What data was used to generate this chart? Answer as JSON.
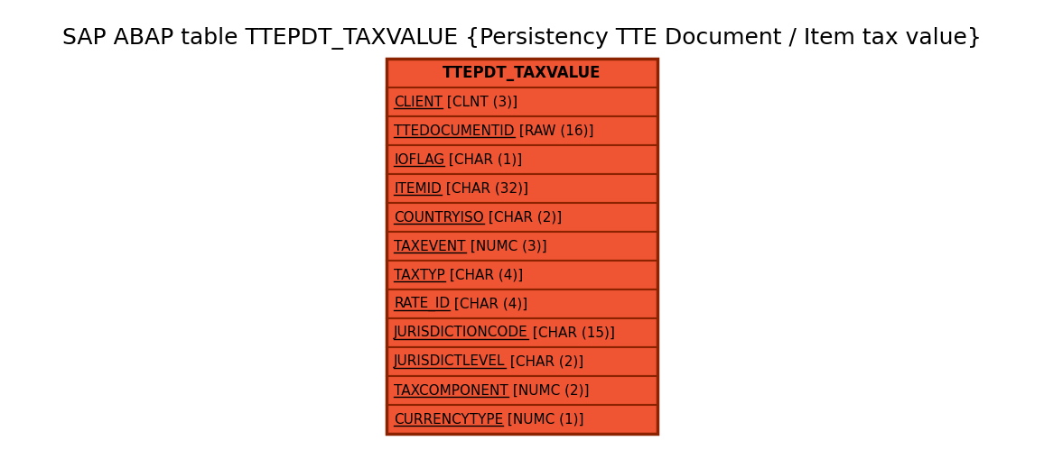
{
  "title": "SAP ABAP table TTEPDT_TAXVALUE {Persistency TTE Document / Item tax value}",
  "title_fontsize": 18,
  "table_name": "TTEPDT_TAXVALUE",
  "header_bg": "#F05533",
  "row_bg": "#F05533",
  "border_color": "#8B2200",
  "text_color": "#000000",
  "header_text_color": "#000000",
  "fields": [
    {
      "name": "CLIENT",
      "type": " [CLNT (3)]"
    },
    {
      "name": "TTEDOCUMENTID",
      "type": " [RAW (16)]"
    },
    {
      "name": "IOFLAG",
      "type": " [CHAR (1)]"
    },
    {
      "name": "ITEMID",
      "type": " [CHAR (32)]"
    },
    {
      "name": "COUNTRYISO",
      "type": " [CHAR (2)]"
    },
    {
      "name": "TAXEVENT",
      "type": " [NUMC (3)]"
    },
    {
      "name": "TAXTYP",
      "type": " [CHAR (4)]"
    },
    {
      "name": "RATE_ID",
      "type": " [CHAR (4)]"
    },
    {
      "name": "JURISDICTIONCODE",
      "type": " [CHAR (15)]"
    },
    {
      "name": "JURISDICTLEVEL",
      "type": " [CHAR (2)]"
    },
    {
      "name": "TAXCOMPONENT",
      "type": " [NUMC (2)]"
    },
    {
      "name": "CURRENCYTYPE",
      "type": " [NUMC (1)]"
    }
  ],
  "background_color": "#ffffff",
  "field_fontsize": 11,
  "header_fontsize": 12,
  "fig_width": 11.56,
  "fig_height": 4.99,
  "dpi": 100
}
